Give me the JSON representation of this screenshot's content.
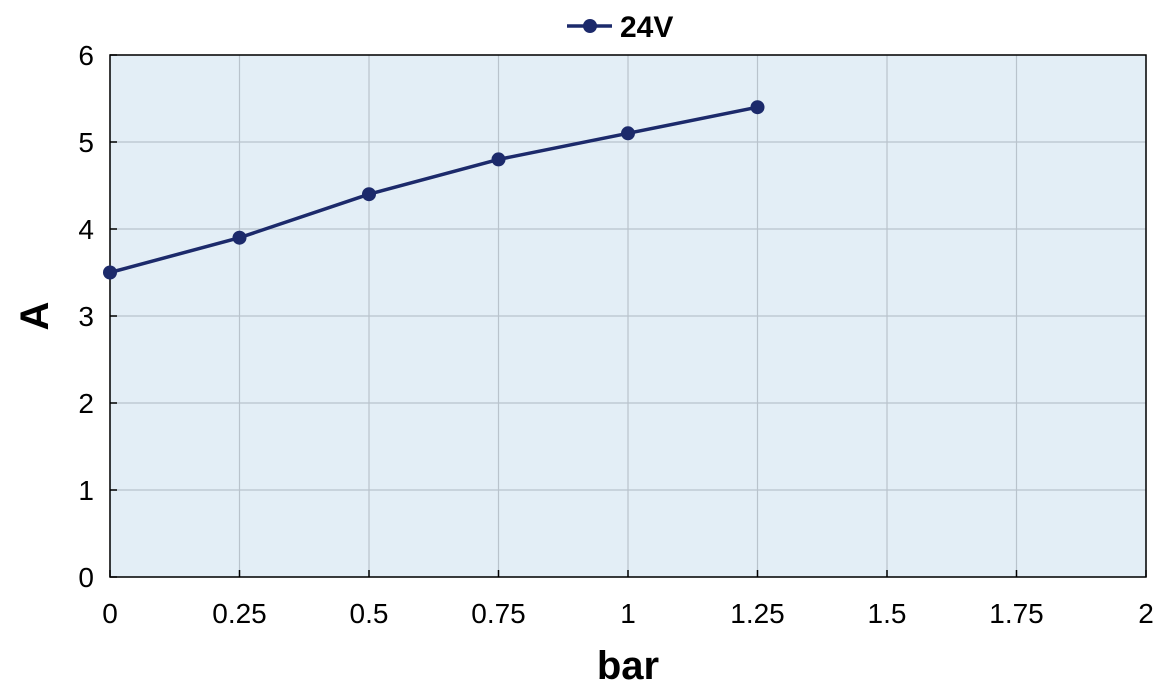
{
  "chart_data": {
    "type": "line",
    "xlabel": "bar",
    "ylabel": "A",
    "xlim": [
      0,
      2
    ],
    "ylim": [
      0,
      6
    ],
    "xticks": [
      "0",
      "0.25",
      "0.5",
      "0.75",
      "1",
      "1.25",
      "1.5",
      "1.75",
      "2"
    ],
    "yticks": [
      "0",
      "1",
      "2",
      "3",
      "4",
      "5",
      "6"
    ],
    "grid": true,
    "legend_position": "top-center",
    "series": [
      {
        "name": "24V",
        "color": "#1c2a6b",
        "x": [
          0,
          0.25,
          0.5,
          0.75,
          1,
          1.25
        ],
        "y": [
          3.5,
          3.9,
          4.4,
          4.8,
          5.1,
          5.4
        ]
      }
    ]
  },
  "colors": {
    "plot_background": "#e3eef6",
    "grid": "#b9c3cc",
    "axis": "#000000"
  }
}
